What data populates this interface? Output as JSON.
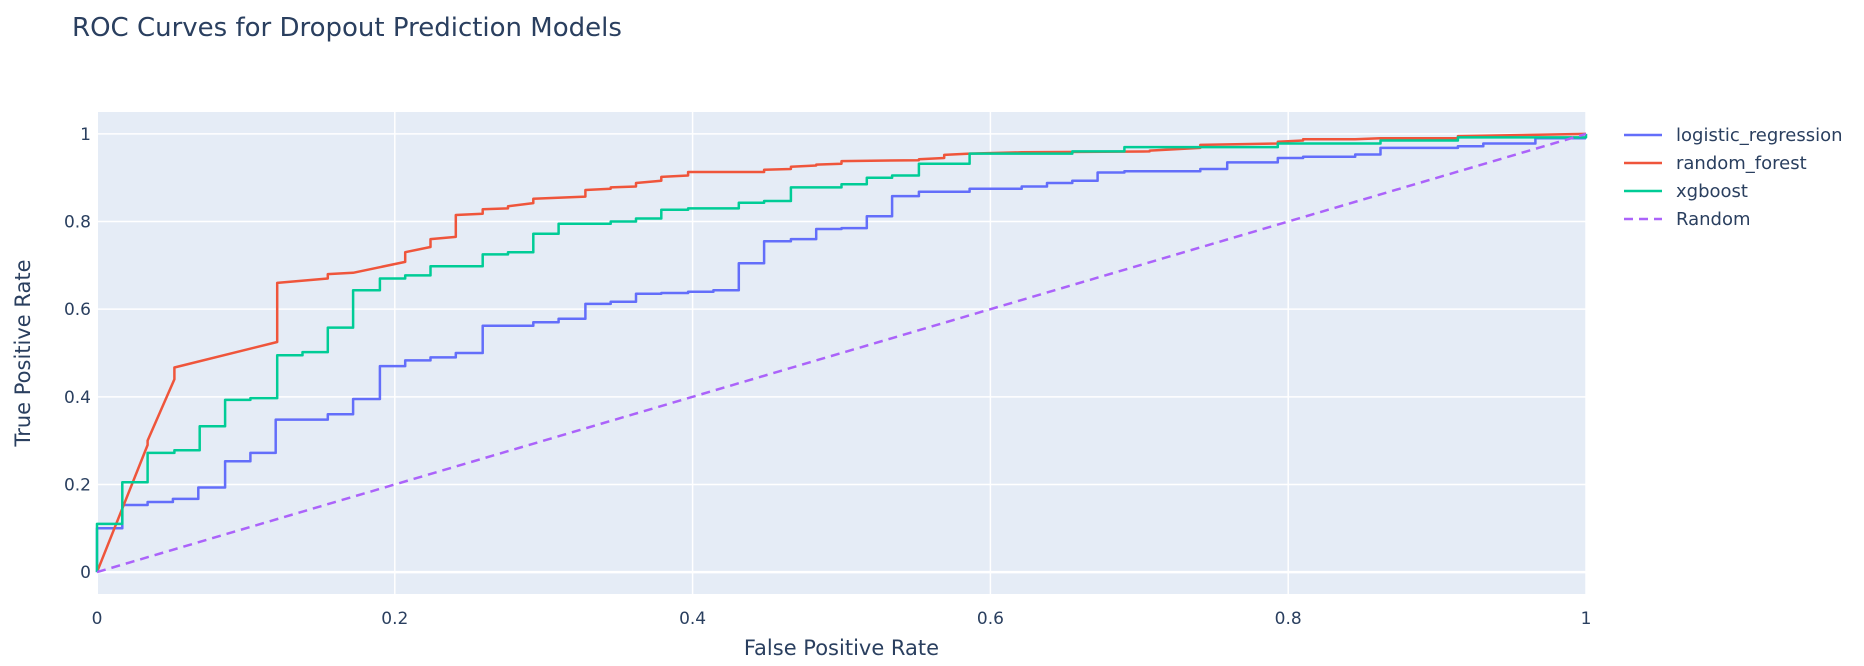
{
  "chart_data": {
    "type": "line",
    "title": "ROC Curves for Dropout Prediction Models",
    "xlabel": "False Positive Rate",
    "ylabel": "True Positive Rate",
    "xlim": [
      0,
      1
    ],
    "ylim": [
      -0.05,
      1.05
    ],
    "xticks": [
      0,
      0.2,
      0.4,
      0.6,
      0.8,
      1
    ],
    "xtick_labels": [
      "0",
      "0.2",
      "0.4",
      "0.6",
      "0.8",
      "1"
    ],
    "yticks": [
      0,
      0.2,
      0.4,
      0.6,
      0.8,
      1
    ],
    "ytick_labels": [
      "0",
      "0.2",
      "0.4",
      "0.6",
      "0.8",
      "1"
    ],
    "grid": true,
    "legend_position": "right",
    "plot_background": "#e5ecf6",
    "series": [
      {
        "name": "logistic_regression",
        "color": "#636efa",
        "dash": "solid",
        "points": [
          [
            0,
            0
          ],
          [
            0,
            0.1
          ],
          [
            0.017,
            0.1
          ],
          [
            0.017,
            0.153
          ],
          [
            0.034,
            0.153
          ],
          [
            0.034,
            0.16
          ],
          [
            0.051,
            0.16
          ],
          [
            0.051,
            0.167
          ],
          [
            0.068,
            0.167
          ],
          [
            0.068,
            0.193
          ],
          [
            0.086,
            0.193
          ],
          [
            0.086,
            0.253
          ],
          [
            0.103,
            0.253
          ],
          [
            0.103,
            0.272
          ],
          [
            0.12,
            0.272
          ],
          [
            0.12,
            0.348
          ],
          [
            0.155,
            0.348
          ],
          [
            0.155,
            0.36
          ],
          [
            0.172,
            0.36
          ],
          [
            0.172,
            0.395
          ],
          [
            0.19,
            0.395
          ],
          [
            0.19,
            0.47
          ],
          [
            0.207,
            0.47
          ],
          [
            0.207,
            0.483
          ],
          [
            0.224,
            0.483
          ],
          [
            0.224,
            0.49
          ],
          [
            0.241,
            0.49
          ],
          [
            0.241,
            0.5
          ],
          [
            0.259,
            0.5
          ],
          [
            0.259,
            0.562
          ],
          [
            0.293,
            0.562
          ],
          [
            0.293,
            0.57
          ],
          [
            0.31,
            0.57
          ],
          [
            0.31,
            0.578
          ],
          [
            0.328,
            0.578
          ],
          [
            0.328,
            0.612
          ],
          [
            0.345,
            0.612
          ],
          [
            0.345,
            0.617
          ],
          [
            0.362,
            0.617
          ],
          [
            0.362,
            0.635
          ],
          [
            0.379,
            0.635
          ],
          [
            0.379,
            0.637
          ],
          [
            0.397,
            0.637
          ],
          [
            0.397,
            0.64
          ],
          [
            0.414,
            0.64
          ],
          [
            0.414,
            0.643
          ],
          [
            0.431,
            0.643
          ],
          [
            0.431,
            0.705
          ],
          [
            0.448,
            0.705
          ],
          [
            0.448,
            0.755
          ],
          [
            0.466,
            0.755
          ],
          [
            0.466,
            0.76
          ],
          [
            0.483,
            0.76
          ],
          [
            0.483,
            0.783
          ],
          [
            0.5,
            0.783
          ],
          [
            0.5,
            0.785
          ],
          [
            0.517,
            0.785
          ],
          [
            0.517,
            0.812
          ],
          [
            0.534,
            0.812
          ],
          [
            0.534,
            0.858
          ],
          [
            0.552,
            0.858
          ],
          [
            0.552,
            0.868
          ],
          [
            0.586,
            0.868
          ],
          [
            0.586,
            0.875
          ],
          [
            0.621,
            0.875
          ],
          [
            0.621,
            0.88
          ],
          [
            0.638,
            0.88
          ],
          [
            0.638,
            0.888
          ],
          [
            0.655,
            0.888
          ],
          [
            0.655,
            0.893
          ],
          [
            0.672,
            0.893
          ],
          [
            0.672,
            0.912
          ],
          [
            0.69,
            0.912
          ],
          [
            0.69,
            0.915
          ],
          [
            0.741,
            0.915
          ],
          [
            0.741,
            0.92
          ],
          [
            0.759,
            0.92
          ],
          [
            0.759,
            0.935
          ],
          [
            0.793,
            0.935
          ],
          [
            0.793,
            0.945
          ],
          [
            0.81,
            0.945
          ],
          [
            0.81,
            0.948
          ],
          [
            0.845,
            0.948
          ],
          [
            0.845,
            0.953
          ],
          [
            0.862,
            0.953
          ],
          [
            0.862,
            0.968
          ],
          [
            0.914,
            0.968
          ],
          [
            0.914,
            0.972
          ],
          [
            0.931,
            0.972
          ],
          [
            0.931,
            0.978
          ],
          [
            0.966,
            0.978
          ],
          [
            0.966,
            0.99
          ],
          [
            1,
            0.99
          ]
        ]
      },
      {
        "name": "random_forest",
        "color": "#ef553b",
        "dash": "solid",
        "points": [
          [
            0,
            0
          ],
          [
            0.034,
            0.29
          ],
          [
            0.034,
            0.3
          ],
          [
            0.052,
            0.44
          ],
          [
            0.052,
            0.467
          ],
          [
            0.121,
            0.525
          ],
          [
            0.121,
            0.66
          ],
          [
            0.155,
            0.67
          ],
          [
            0.155,
            0.68
          ],
          [
            0.172,
            0.683
          ],
          [
            0.207,
            0.708
          ],
          [
            0.207,
            0.73
          ],
          [
            0.224,
            0.742
          ],
          [
            0.224,
            0.76
          ],
          [
            0.241,
            0.765
          ],
          [
            0.241,
            0.815
          ],
          [
            0.259,
            0.818
          ],
          [
            0.259,
            0.828
          ],
          [
            0.276,
            0.83
          ],
          [
            0.276,
            0.835
          ],
          [
            0.293,
            0.842
          ],
          [
            0.293,
            0.852
          ],
          [
            0.328,
            0.857
          ],
          [
            0.328,
            0.872
          ],
          [
            0.345,
            0.875
          ],
          [
            0.345,
            0.878
          ],
          [
            0.362,
            0.88
          ],
          [
            0.362,
            0.888
          ],
          [
            0.379,
            0.893
          ],
          [
            0.379,
            0.902
          ],
          [
            0.397,
            0.905
          ],
          [
            0.397,
            0.913
          ],
          [
            0.448,
            0.913
          ],
          [
            0.448,
            0.918
          ],
          [
            0.466,
            0.92
          ],
          [
            0.466,
            0.925
          ],
          [
            0.483,
            0.928
          ],
          [
            0.483,
            0.93
          ],
          [
            0.5,
            0.932
          ],
          [
            0.5,
            0.938
          ],
          [
            0.552,
            0.94
          ],
          [
            0.552,
            0.942
          ],
          [
            0.569,
            0.945
          ],
          [
            0.569,
            0.952
          ],
          [
            0.586,
            0.955
          ],
          [
            0.621,
            0.958
          ],
          [
            0.707,
            0.96
          ],
          [
            0.707,
            0.962
          ],
          [
            0.741,
            0.968
          ],
          [
            0.741,
            0.975
          ],
          [
            0.793,
            0.978
          ],
          [
            0.793,
            0.982
          ],
          [
            0.81,
            0.985
          ],
          [
            0.81,
            0.988
          ],
          [
            0.845,
            0.988
          ],
          [
            0.862,
            0.99
          ],
          [
            0.914,
            0.99
          ],
          [
            0.914,
            0.995
          ],
          [
            1,
            1
          ]
        ]
      },
      {
        "name": "xgboost",
        "color": "#00cc96",
        "dash": "solid",
        "points": [
          [
            0,
            0
          ],
          [
            0,
            0.11
          ],
          [
            0.017,
            0.11
          ],
          [
            0.017,
            0.205
          ],
          [
            0.034,
            0.205
          ],
          [
            0.034,
            0.272
          ],
          [
            0.052,
            0.272
          ],
          [
            0.052,
            0.278
          ],
          [
            0.069,
            0.278
          ],
          [
            0.069,
            0.333
          ],
          [
            0.086,
            0.333
          ],
          [
            0.086,
            0.393
          ],
          [
            0.103,
            0.393
          ],
          [
            0.103,
            0.397
          ],
          [
            0.121,
            0.397
          ],
          [
            0.121,
            0.495
          ],
          [
            0.138,
            0.495
          ],
          [
            0.138,
            0.502
          ],
          [
            0.155,
            0.502
          ],
          [
            0.155,
            0.558
          ],
          [
            0.172,
            0.558
          ],
          [
            0.172,
            0.643
          ],
          [
            0.19,
            0.643
          ],
          [
            0.19,
            0.67
          ],
          [
            0.207,
            0.67
          ],
          [
            0.207,
            0.677
          ],
          [
            0.224,
            0.677
          ],
          [
            0.224,
            0.698
          ],
          [
            0.259,
            0.698
          ],
          [
            0.259,
            0.725
          ],
          [
            0.276,
            0.725
          ],
          [
            0.276,
            0.73
          ],
          [
            0.293,
            0.73
          ],
          [
            0.293,
            0.772
          ],
          [
            0.31,
            0.772
          ],
          [
            0.31,
            0.795
          ],
          [
            0.345,
            0.795
          ],
          [
            0.345,
            0.8
          ],
          [
            0.362,
            0.8
          ],
          [
            0.362,
            0.807
          ],
          [
            0.379,
            0.807
          ],
          [
            0.379,
            0.827
          ],
          [
            0.397,
            0.827
          ],
          [
            0.397,
            0.83
          ],
          [
            0.431,
            0.83
          ],
          [
            0.431,
            0.843
          ],
          [
            0.448,
            0.843
          ],
          [
            0.448,
            0.847
          ],
          [
            0.466,
            0.847
          ],
          [
            0.466,
            0.878
          ],
          [
            0.5,
            0.878
          ],
          [
            0.5,
            0.885
          ],
          [
            0.517,
            0.885
          ],
          [
            0.517,
            0.9
          ],
          [
            0.534,
            0.9
          ],
          [
            0.534,
            0.905
          ],
          [
            0.552,
            0.905
          ],
          [
            0.552,
            0.932
          ],
          [
            0.586,
            0.932
          ],
          [
            0.586,
            0.955
          ],
          [
            0.655,
            0.955
          ],
          [
            0.655,
            0.96
          ],
          [
            0.69,
            0.96
          ],
          [
            0.69,
            0.97
          ],
          [
            0.793,
            0.97
          ],
          [
            0.793,
            0.978
          ],
          [
            0.862,
            0.978
          ],
          [
            0.862,
            0.985
          ],
          [
            0.914,
            0.985
          ],
          [
            0.914,
            0.992
          ],
          [
            1,
            0.992
          ],
          [
            1,
            1
          ]
        ]
      },
      {
        "name": "Random",
        "color": "#ab63fa",
        "dash": "dash",
        "points": [
          [
            0,
            0
          ],
          [
            1,
            1
          ]
        ]
      }
    ]
  }
}
